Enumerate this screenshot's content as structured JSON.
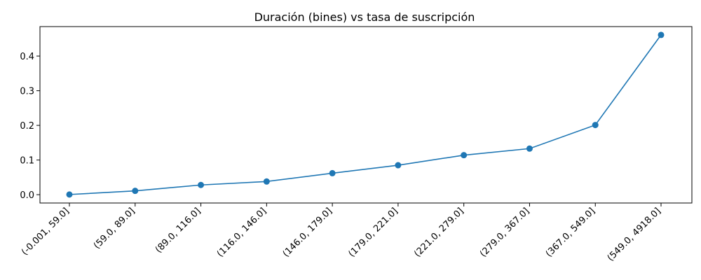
{
  "chart_data": {
    "type": "line",
    "title": "Duración (bines) vs tasa de suscripción",
    "xlabel": "",
    "ylabel": "",
    "categories": [
      "(-0.001, 59.0]",
      "(59.0, 89.0]",
      "(89.0, 116.0]",
      "(116.0, 146.0]",
      "(146.0, 179.0]",
      "(179.0, 221.0]",
      "(221.0, 279.0]",
      "(279.0, 367.0]",
      "(367.0, 549.0]",
      "(549.0, 4918.0]"
    ],
    "series": [
      {
        "values": [
          0.0005,
          0.011,
          0.028,
          0.038,
          0.062,
          0.085,
          0.114,
          0.133,
          0.201,
          0.461
        ]
      }
    ],
    "ylim": [
      -0.024,
      0.485
    ],
    "yticks": [
      "0.0",
      "0.1",
      "0.2",
      "0.3",
      "0.4"
    ],
    "line_color": "#1f77b4",
    "marker": "circle",
    "grid": false,
    "legend": "none"
  }
}
